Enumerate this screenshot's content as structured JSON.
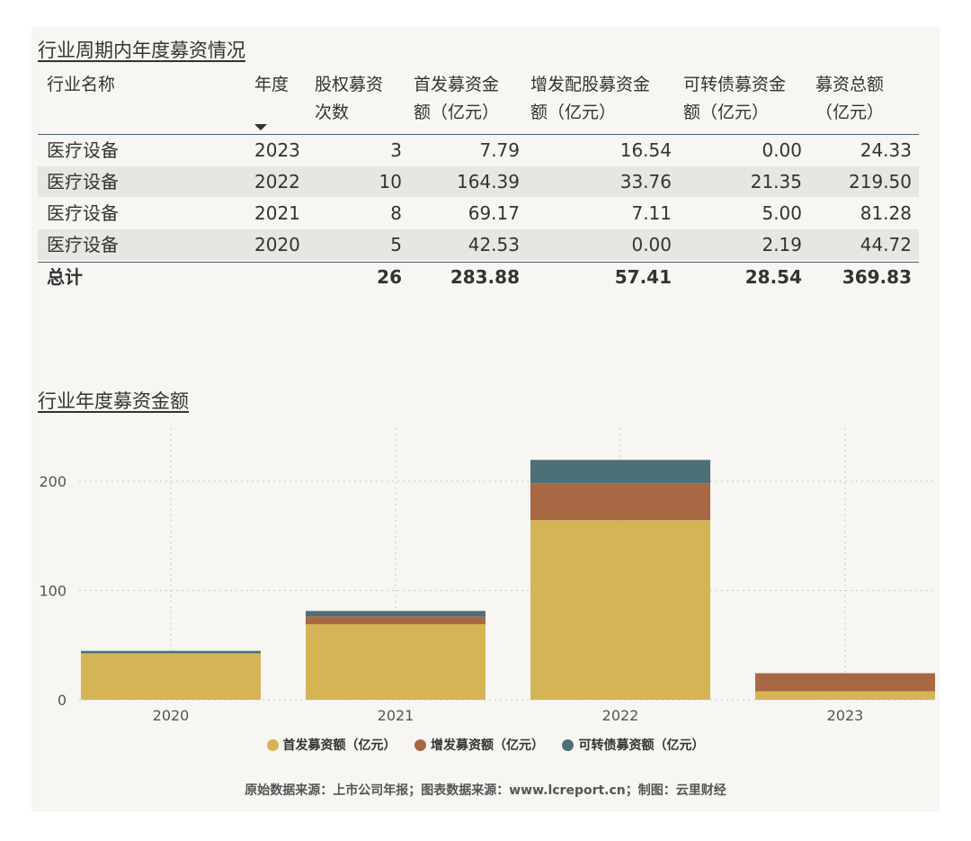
{
  "table": {
    "title": "行业周期内年度募资情况",
    "headers": {
      "name": "行业名称",
      "year": "年度",
      "count_1": "股权募资",
      "count_2": "次数",
      "ipo_1": "首发募资金",
      "ipo_2": "额（亿元）",
      "add_1": "增发配股募资金",
      "add_2": "额（亿元）",
      "cb_1": "可转债募资金",
      "cb_2": "额（亿元）",
      "total_1": "募资总额",
      "total_2": "（亿元）"
    },
    "rows": [
      {
        "name": "医疗设备",
        "year": "2023",
        "count": "3",
        "ipo": "7.79",
        "add": "16.54",
        "cb": "0.00",
        "total": "24.33"
      },
      {
        "name": "医疗设备",
        "year": "2022",
        "count": "10",
        "ipo": "164.39",
        "add": "33.76",
        "cb": "21.35",
        "total": "219.50"
      },
      {
        "name": "医疗设备",
        "year": "2021",
        "count": "8",
        "ipo": "69.17",
        "add": "7.11",
        "cb": "5.00",
        "total": "81.28"
      },
      {
        "name": "医疗设备",
        "year": "2020",
        "count": "5",
        "ipo": "42.53",
        "add": "0.00",
        "cb": "2.19",
        "total": "44.72"
      }
    ],
    "total": {
      "label": "总计",
      "count": "26",
      "ipo": "283.88",
      "add": "57.41",
      "cb": "28.54",
      "total": "369.83"
    }
  },
  "chart_title": "行业年度募资金额",
  "chart_data": {
    "type": "bar",
    "stacked": true,
    "categories": [
      "2020",
      "2021",
      "2022",
      "2023"
    ],
    "series": [
      {
        "name": "首发募资额（亿元）",
        "color": "#d4b455",
        "values": [
          42.53,
          69.17,
          164.39,
          7.79
        ]
      },
      {
        "name": "增发募资额（亿元）",
        "color": "#a86844",
        "values": [
          0.0,
          7.11,
          33.76,
          16.54
        ]
      },
      {
        "name": "可转债募资额（亿元）",
        "color": "#4d6f78",
        "values": [
          2.19,
          5.0,
          21.35,
          0.0
        ]
      }
    ],
    "ylim": [
      0,
      250
    ],
    "yticks": [
      0,
      100,
      200
    ],
    "grid": true,
    "legend": "bottom"
  },
  "source": "原始数据来源：上市公司年报；图表数据来源：www.lcreport.cn；制图：云里财经"
}
